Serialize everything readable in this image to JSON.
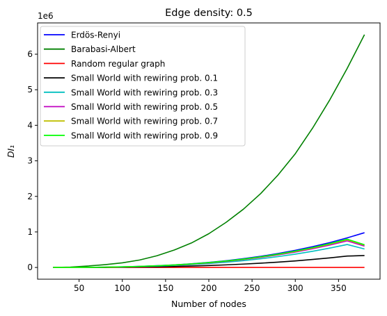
{
  "chart_data": {
    "type": "line",
    "title": "Edge density: 0.5",
    "xlabel": "Number of nodes",
    "ylabel": "DI₁",
    "y_offset_label": "1e6",
    "xlim": [
      2,
      398
    ],
    "ylim": [
      -0.33,
      6.88
    ],
    "x_ticks": [
      50,
      100,
      150,
      200,
      250,
      300,
      350
    ],
    "y_ticks": [
      0,
      1,
      2,
      3,
      4,
      5,
      6
    ],
    "grid": false,
    "legend_position": "upper-left",
    "x": [
      20,
      40,
      60,
      80,
      100,
      120,
      140,
      160,
      180,
      200,
      220,
      240,
      260,
      280,
      300,
      320,
      340,
      360,
      380
    ],
    "series": [
      {
        "name": "Erdös-Renyi",
        "color": "#0000ff",
        "values": [
          0.0001,
          0.001,
          0.004,
          0.009,
          0.018,
          0.031,
          0.049,
          0.073,
          0.104,
          0.143,
          0.19,
          0.247,
          0.314,
          0.392,
          0.482,
          0.585,
          0.701,
          0.832,
          0.978
        ]
      },
      {
        "name": "Barabasi-Albert",
        "color": "#008000",
        "values": [
          0.001,
          0.01,
          0.04,
          0.08,
          0.13,
          0.21,
          0.33,
          0.49,
          0.69,
          0.95,
          1.27,
          1.64,
          2.08,
          2.6,
          3.2,
          3.92,
          4.72,
          5.6,
          6.55
        ]
      },
      {
        "name": "Random regular graph",
        "color": "#ff0000",
        "values": [
          0,
          0,
          0,
          0,
          0,
          0,
          0,
          0,
          0,
          0,
          0,
          0,
          0,
          0,
          0,
          0,
          0,
          0,
          0
        ]
      },
      {
        "name": "Small World with rewiring prob. 0.1",
        "color": "#000000",
        "values": [
          0.0,
          0.0004,
          0.0014,
          0.0035,
          0.007,
          0.012,
          0.019,
          0.028,
          0.04,
          0.055,
          0.073,
          0.095,
          0.12,
          0.15,
          0.185,
          0.225,
          0.27,
          0.32,
          0.335
        ]
      },
      {
        "name": "Small World with rewiring prob. 0.3",
        "color": "#00bfbf",
        "values": [
          0.0001,
          0.0008,
          0.003,
          0.007,
          0.014,
          0.024,
          0.038,
          0.057,
          0.081,
          0.111,
          0.148,
          0.192,
          0.244,
          0.305,
          0.375,
          0.455,
          0.545,
          0.646,
          0.52
        ]
      },
      {
        "name": "Small World with rewiring prob. 0.5",
        "color": "#bf00bf",
        "values": [
          0.0001,
          0.0009,
          0.0035,
          0.008,
          0.016,
          0.028,
          0.044,
          0.066,
          0.094,
          0.128,
          0.171,
          0.222,
          0.282,
          0.352,
          0.433,
          0.525,
          0.63,
          0.747,
          0.6
        ]
      },
      {
        "name": "Small World with rewiring prob. 0.7",
        "color": "#bfbf00",
        "values": [
          0.0001,
          0.0009,
          0.0036,
          0.0085,
          0.017,
          0.029,
          0.046,
          0.069,
          0.098,
          0.134,
          0.178,
          0.231,
          0.294,
          0.367,
          0.452,
          0.548,
          0.657,
          0.779,
          0.63
        ]
      },
      {
        "name": "Small World with rewiring prob. 0.9",
        "color": "#00ff00",
        "values": [
          0.0001,
          0.001,
          0.0038,
          0.0088,
          0.0175,
          0.03,
          0.047,
          0.07,
          0.1,
          0.137,
          0.182,
          0.236,
          0.3,
          0.375,
          0.461,
          0.559,
          0.67,
          0.795,
          0.64
        ]
      }
    ]
  }
}
